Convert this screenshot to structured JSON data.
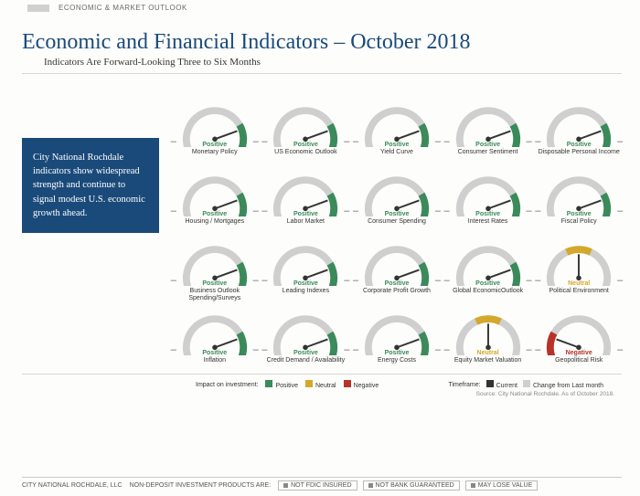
{
  "header": {
    "section": "ECONOMIC & MARKET OUTLOOK",
    "title": "Economic and Financial Indicators – October 2018",
    "subtitle": "Indicators Are Forward-Looking Three to Six Months"
  },
  "callout": "City National Rochdale indicators show widespread strength and continue to signal modest U.S. economic growth ahead.",
  "colors": {
    "positive": "#3a8a5a",
    "neutral": "#d4a82a",
    "negative": "#b8322a",
    "arc_bg": "#cfcfcf",
    "needle": "#333333",
    "brand_blue": "#1a4a7a"
  },
  "gauge": {
    "arc_start_deg": 200,
    "arc_end_deg": -20,
    "segment_span_deg": 50,
    "needle_angles": {
      "positive": 20,
      "neutral": 90,
      "negative": 160
    }
  },
  "indicators": [
    {
      "label": "Monetary Policy",
      "status": "positive"
    },
    {
      "label": "US Economic Outlook",
      "status": "positive"
    },
    {
      "label": "Yield Curve",
      "status": "positive"
    },
    {
      "label": "Consumer Sentiment",
      "status": "positive"
    },
    {
      "label": "Disposable Personal Income",
      "status": "positive"
    },
    {
      "label": "Housing / Mortgages",
      "status": "positive"
    },
    {
      "label": "Labor Market",
      "status": "positive"
    },
    {
      "label": "Consumer Spending",
      "status": "positive"
    },
    {
      "label": "Interest Rates",
      "status": "positive"
    },
    {
      "label": "Fiscal Policy",
      "status": "positive"
    },
    {
      "label": "Business Outlook Spending/Surveys",
      "status": "positive"
    },
    {
      "label": "Leading Indexes",
      "status": "positive"
    },
    {
      "label": "Corporate Profit Growth",
      "status": "positive"
    },
    {
      "label": "Global EconomicOutlook",
      "status": "positive"
    },
    {
      "label": "Political Environment",
      "status": "neutral"
    },
    {
      "label": "Inflation",
      "status": "positive"
    },
    {
      "label": "Credit Demand / Availability",
      "status": "positive"
    },
    {
      "label": "Energy Costs",
      "status": "positive"
    },
    {
      "label": "Equity Market Valuation",
      "status": "neutral"
    },
    {
      "label": "Geopolitical Risk",
      "status": "negative"
    }
  ],
  "status_text": {
    "positive": "Positive",
    "neutral": "Neutral",
    "negative": "Negative"
  },
  "legend": {
    "impact_label": "Impact on investment:",
    "items": [
      {
        "text": "Positive",
        "color": "#3a8a5a"
      },
      {
        "text": "Neutral",
        "color": "#d4a82a"
      },
      {
        "text": "Negative",
        "color": "#b8322a"
      }
    ],
    "timeframe_label": "Timeframe:",
    "timeframe_items": [
      {
        "text": "Current",
        "color": "#333333"
      },
      {
        "text": "Change from Last month",
        "color": "#cfcfcf"
      }
    ]
  },
  "source": "Source: City National Rochdale. As of October 2018.",
  "footer": {
    "company": "CITY NATIONAL ROCHDALE, LLC",
    "lead": "NON-DEPOSIT INVESTMENT PRODUCTS ARE:",
    "disclaimers": [
      "NOT FDIC INSURED",
      "NOT BANK GUARANTEED",
      "MAY LOSE VALUE"
    ]
  }
}
